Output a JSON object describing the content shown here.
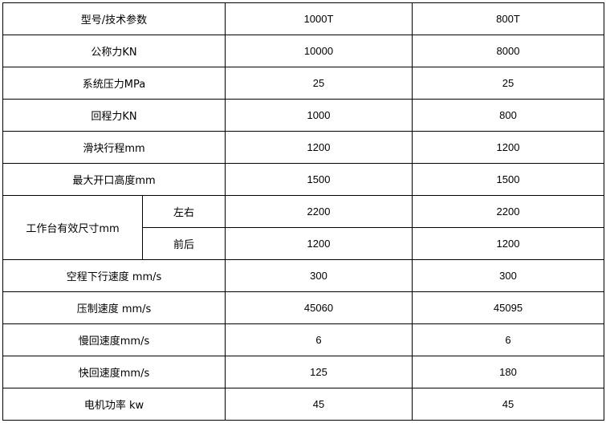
{
  "header": {
    "label": "型号/技术参数",
    "models": [
      "1000T",
      "800T"
    ]
  },
  "rows": [
    {
      "label": "公称力KN",
      "values": [
        "10000",
        "8000"
      ]
    },
    {
      "label": "系统压力MPa",
      "values": [
        "25",
        "25"
      ]
    },
    {
      "label": "回程力KN",
      "values": [
        "1000",
        "800"
      ]
    },
    {
      "label": "滑块行程mm",
      "values": [
        "1200",
        "1200"
      ]
    },
    {
      "label": "最大开口高度mm",
      "values": [
        "1500",
        "1500"
      ]
    }
  ],
  "table_size": {
    "label": "工作台有效尺寸mm",
    "sub": [
      {
        "label": "左右",
        "values": [
          "2200",
          "2200"
        ]
      },
      {
        "label": "前后",
        "values": [
          "1200",
          "1200"
        ]
      }
    ]
  },
  "rows2": [
    {
      "label": "空程下行速度 mm/s",
      "values": [
        "300",
        "300"
      ]
    },
    {
      "label": "压制速度 mm/s",
      "values": [
        "45060",
        "45095"
      ]
    },
    {
      "label": "慢回速度mm/s",
      "values": [
        "6",
        "6"
      ]
    },
    {
      "label": "快回速度mm/s",
      "values": [
        "125",
        "180"
      ]
    },
    {
      "label": "电机功率 kw",
      "values": [
        "45",
        "45"
      ]
    }
  ]
}
